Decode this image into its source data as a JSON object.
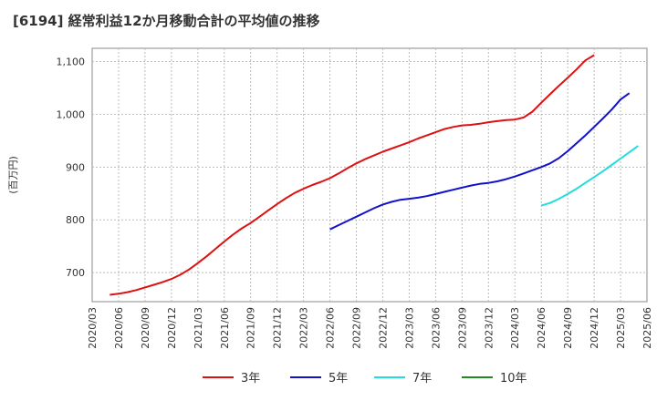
{
  "chart_data": {
    "type": "line",
    "title": "[6194]  経常利益12か月移動合計の平均値の推移",
    "xlabel": "",
    "ylabel": "(百万円)",
    "ylim": [
      645,
      1125
    ],
    "yticks": [
      700,
      800,
      900,
      1000,
      1100
    ],
    "ytick_labels": [
      "700",
      "800",
      "900",
      "1,000",
      "1,100"
    ],
    "grid": true,
    "legend_position": "bottom",
    "x_tick_labels": [
      "2020/03",
      "2020/06",
      "2020/09",
      "2020/12",
      "2021/03",
      "2021/06",
      "2021/09",
      "2021/12",
      "2022/03",
      "2022/06",
      "2022/09",
      "2022/12",
      "2023/03",
      "2023/06",
      "2023/09",
      "2023/12",
      "2024/03",
      "2024/06",
      "2024/09",
      "2024/12",
      "2025/03",
      "2025/06"
    ],
    "series": [
      {
        "name": "3年",
        "color": "#dd1111",
        "start_index": 2,
        "values": [
          658,
          660,
          663,
          667,
          672,
          677,
          682,
          688,
          696,
          706,
          718,
          731,
          745,
          759,
          772,
          784,
          794,
          806,
          818,
          830,
          841,
          851,
          859,
          866,
          872,
          879,
          888,
          898,
          907,
          915,
          922,
          929,
          935,
          941,
          947,
          954,
          960,
          966,
          972,
          976,
          979,
          980,
          982,
          985,
          987,
          989,
          990,
          994,
          1005,
          1022,
          1038,
          1054,
          1069,
          1085,
          1102,
          1112
        ]
      },
      {
        "name": "5年",
        "color": "#1111cc",
        "start_index": 27,
        "values": [
          782,
          790,
          798,
          806,
          814,
          822,
          829,
          834,
          838,
          840,
          842,
          845,
          849,
          853,
          857,
          861,
          865,
          868,
          870,
          873,
          877,
          882,
          888,
          894,
          900,
          907,
          917,
          930,
          945,
          960,
          976,
          992,
          1009,
          1028,
          1040
        ]
      },
      {
        "name": "7年",
        "color": "#22dddd",
        "start_index": 51,
        "values": [
          827,
          832,
          840,
          849,
          859,
          870,
          881,
          892,
          904,
          916,
          928,
          940
        ]
      },
      {
        "name": "10年",
        "color": "#228822",
        "start_index": 0,
        "values": []
      }
    ]
  }
}
